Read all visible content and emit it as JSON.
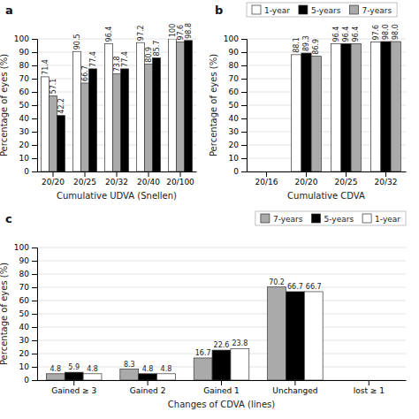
{
  "chart_data": [
    {
      "type": "bar",
      "title": "a",
      "categories": [
        "20/20",
        "20/25",
        "20/32",
        "20/40",
        "20/100"
      ],
      "series": [
        {
          "color": "#ffffff",
          "values": [
            71.4,
            90.5,
            96.4,
            97.2,
            100
          ]
        },
        {
          "color": "#aaaaaa",
          "values": [
            57.1,
            66.7,
            73.8,
            80.9,
            97.6
          ]
        },
        {
          "color": "#000000",
          "values": [
            42.2,
            77.4,
            77.4,
            85.7,
            98.8
          ]
        }
      ],
      "xlabel": "Cumulative UDVA (Snellen)",
      "ylabel": "Percentage of eyes (%)",
      "ylim": [
        0,
        100
      ],
      "yticks": [
        0,
        10,
        20,
        30,
        40,
        50,
        60,
        70,
        80,
        90,
        100
      ],
      "grid": true,
      "data_labels": true
    },
    {
      "type": "bar",
      "title": "b",
      "categories": [
        "20/16",
        "20/20",
        "20/25",
        "20/32"
      ],
      "series": [
        {
          "name": "1-year",
          "color": "#ffffff",
          "values": [
            0,
            88.1,
            96.4,
            97.6
          ],
          "value_labels": [
            null,
            "88.1",
            "96.4",
            "97.6"
          ]
        },
        {
          "name": "5-years",
          "color": "#000000",
          "values": [
            0,
            89.3,
            96.4,
            98.0
          ],
          "value_labels": [
            null,
            "89.3",
            "96.4",
            "98.0"
          ]
        },
        {
          "name": "7-years",
          "color": "#aaaaaa",
          "values": [
            0,
            86.9,
            96.4,
            98.0
          ],
          "value_labels": [
            null,
            "86.9",
            "96.4",
            "98.0"
          ]
        }
      ],
      "xlabel": "Cumulative CDVA",
      "ylabel": "Percentage of eyes (%)",
      "ylim": [
        0,
        100
      ],
      "yticks": [
        0,
        10,
        20,
        30,
        40,
        50,
        60,
        70,
        80,
        90,
        100
      ],
      "grid": true,
      "data_labels": true,
      "legend": "upper left"
    },
    {
      "type": "bar",
      "title": "c",
      "categories": [
        "Gained ≥ 3",
        "Gained 2",
        "Gained 1",
        "Unchanged",
        "lost ≥ 1"
      ],
      "series": [
        {
          "name": "7-years",
          "color": "#aaaaaa",
          "values": [
            4.8,
            8.3,
            16.7,
            70.2,
            0
          ],
          "value_labels": [
            "4.8",
            "8.3",
            "16.7",
            "70.2",
            null
          ]
        },
        {
          "name": "5-years",
          "color": "#000000",
          "values": [
            5.9,
            4.8,
            22.6,
            66.7,
            0
          ],
          "value_labels": [
            "5.9",
            "4.8",
            "22.6",
            "66.7",
            null
          ]
        },
        {
          "name": "1-year",
          "color": "#ffffff",
          "values": [
            4.8,
            4.8,
            23.8,
            66.7,
            0
          ],
          "value_labels": [
            "4.8",
            "4.8",
            "23.8",
            "66.7",
            null
          ]
        }
      ],
      "xlabel": "Changes of CDVA (lines)",
      "ylabel": "Percentage of eyes (%)",
      "ylim": [
        0,
        100
      ],
      "yticks": [
        0,
        10,
        20,
        30,
        40,
        50,
        60,
        70,
        80,
        90,
        100
      ],
      "grid": true,
      "data_labels": true,
      "legend": "upper right"
    }
  ]
}
